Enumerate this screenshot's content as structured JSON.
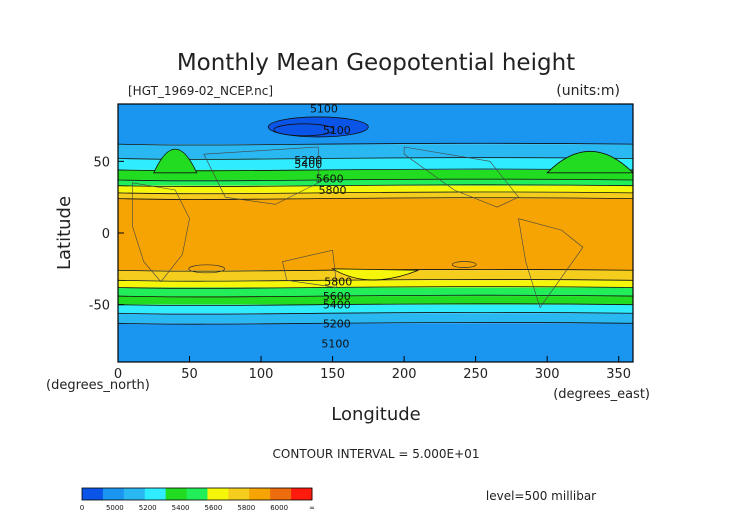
{
  "chart_data": {
    "type": "heatmap",
    "title": "Monthly Mean Geopotential height",
    "file_label": "[HGT_1969-02_NCEP.nc]",
    "units_label": "(units:m)",
    "xlabel": "Longitude",
    "ylabel": "Latitude",
    "x_unit_label": "(degrees_east)",
    "y_unit_label": "(degrees_north)",
    "xlim": [
      0,
      360
    ],
    "ylim": [
      -90,
      90
    ],
    "x_ticks": [
      0,
      50,
      100,
      150,
      200,
      250,
      300,
      350
    ],
    "y_ticks": [
      -50,
      0,
      50
    ],
    "contour_interval_text": "CONTOUR INTERVAL = 5.000E+01",
    "level_text": "level=500 millibar",
    "contour_labels": [
      "5100",
      "5100",
      "5200",
      "5400",
      "5600",
      "5800",
      "5800",
      "5600",
      "5400",
      "5200",
      "5100"
    ],
    "color_scale": {
      "boundaries": [
        0,
        5000,
        5200,
        5400,
        5600,
        5800,
        6000
      ],
      "tick_labels": [
        "0",
        "5000",
        "5200",
        "5400",
        "5600",
        "5800",
        "6000",
        "∞"
      ],
      "colors": [
        "#0a55e8",
        "#1a96f0",
        "#2ab8f2",
        "#30ecff",
        "#22dc22",
        "#22ee5a",
        "#f6f60a",
        "#f5ce1d",
        "#f5a403",
        "#ec6c0e",
        "#ff1a0e"
      ]
    },
    "bands": [
      {
        "lat_from": 90,
        "lat_to": 62,
        "value_range": "5000-5200",
        "color": "#1a96f0"
      },
      {
        "lat_from": 62,
        "lat_to": 52,
        "value_range": "5200-5300",
        "color": "#2ab8f2"
      },
      {
        "lat_from": 52,
        "lat_to": 44,
        "value_range": "5300-5400",
        "color": "#30ecff"
      },
      {
        "lat_from": 44,
        "lat_to": 37,
        "value_range": "5400-5500",
        "color": "#22dc22"
      },
      {
        "lat_from": 37,
        "lat_to": 33,
        "value_range": "5500-5600",
        "color": "#22ee5a"
      },
      {
        "lat_from": 33,
        "lat_to": 28,
        "value_range": "5600-5700",
        "color": "#f6f60a"
      },
      {
        "lat_from": 28,
        "lat_to": 24,
        "value_range": "5700-5800",
        "color": "#f5ce1d"
      },
      {
        "lat_from": 24,
        "lat_to": -26,
        "value_range": "5800-5900",
        "color": "#f5a403"
      },
      {
        "lat_from": -26,
        "lat_to": -33,
        "value_range": "5700-5800",
        "color": "#f5ce1d"
      },
      {
        "lat_from": -33,
        "lat_to": -38,
        "value_range": "5600-5700",
        "color": "#f6f60a"
      },
      {
        "lat_from": -38,
        "lat_to": -44,
        "value_range": "5500-5600",
        "color": "#22ee5a"
      },
      {
        "lat_from": -44,
        "lat_to": -50,
        "value_range": "5400-5500",
        "color": "#22dc22"
      },
      {
        "lat_from": -50,
        "lat_to": -56,
        "value_range": "5300-5400",
        "color": "#30ecff"
      },
      {
        "lat_from": -56,
        "lat_to": -63,
        "value_range": "5200-5300",
        "color": "#2ab8f2"
      },
      {
        "lat_from": -63,
        "lat_to": -90,
        "value_range": "5000-5200",
        "color": "#1a96f0"
      }
    ]
  }
}
